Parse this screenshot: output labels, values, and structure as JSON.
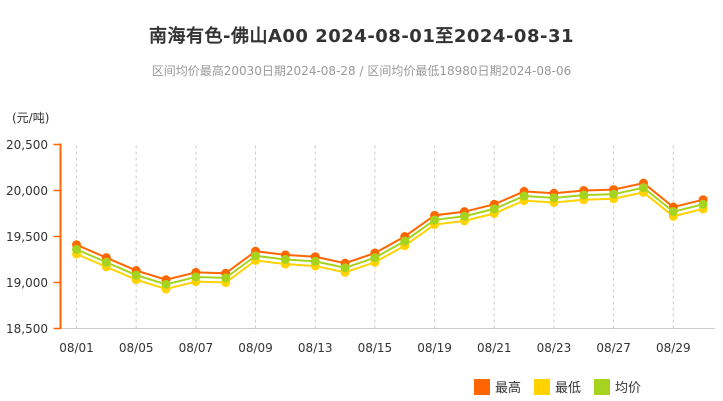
{
  "header": {
    "title": "南海有色-佛山A00 2024-08-01至2024-08-31",
    "subtitle": "区间均价最高20030日期2024-08-28 / 区间均价最低18980日期2024-08-06"
  },
  "y_axis": {
    "unit": "(元/吨)",
    "tick_labels": [
      "20,500",
      "20,000",
      "19,500",
      "19,000",
      "18,500"
    ]
  },
  "x_axis": {
    "tick_labels": [
      "08/01",
      "08/05",
      "08/07",
      "08/09",
      "08/13",
      "08/15",
      "08/19",
      "08/21",
      "08/23",
      "08/27",
      "08/29"
    ]
  },
  "colors": {
    "axis": "#FF6600",
    "grid": "#CCCCCC",
    "text": "#333333",
    "subtitle_text": "#999999"
  },
  "chart_data": {
    "type": "line",
    "title": "南海有色-佛山A00 2024-08-01至2024-08-31",
    "subtitle": "区间均价最高20030日期2024-08-28 / 区间均价最低18980日期2024-08-06",
    "ylabel": "(元/吨)",
    "ylim": [
      18500,
      20500
    ],
    "y_tick_step": 500,
    "grid": "vertical-dashed",
    "legend_position": "bottom-right",
    "x": [
      "08/01",
      "08/02",
      "08/05",
      "08/06",
      "08/07",
      "08/08",
      "08/09",
      "08/12",
      "08/13",
      "08/14",
      "08/15",
      "08/16",
      "08/19",
      "08/20",
      "08/21",
      "08/22",
      "08/23",
      "08/26",
      "08/27",
      "08/28",
      "08/29",
      "08/30"
    ],
    "x_tick_labels": [
      "08/01",
      "08/05",
      "08/07",
      "08/09",
      "08/13",
      "08/15",
      "08/19",
      "08/21",
      "08/23",
      "08/27",
      "08/29"
    ],
    "series": [
      {
        "name": "最高",
        "color": "#FF6600",
        "values": [
          19410,
          19270,
          19130,
          19030,
          19110,
          19100,
          19340,
          19300,
          19280,
          19210,
          19320,
          19500,
          19730,
          19770,
          19850,
          19990,
          19970,
          20000,
          20010,
          20080,
          19820,
          19900
        ]
      },
      {
        "name": "最低",
        "color": "#FFD200",
        "values": [
          19310,
          19170,
          19030,
          18930,
          19010,
          19000,
          19240,
          19200,
          19180,
          19110,
          19220,
          19400,
          19630,
          19670,
          19750,
          19890,
          19870,
          19900,
          19910,
          19980,
          19720,
          19800
        ]
      },
      {
        "name": "均价",
        "color": "#A6D41E",
        "values": [
          19360,
          19220,
          19080,
          18980,
          19060,
          19050,
          19290,
          19250,
          19230,
          19160,
          19270,
          19450,
          19680,
          19720,
          19800,
          19940,
          19920,
          19950,
          19960,
          20030,
          19770,
          19850
        ]
      }
    ]
  }
}
